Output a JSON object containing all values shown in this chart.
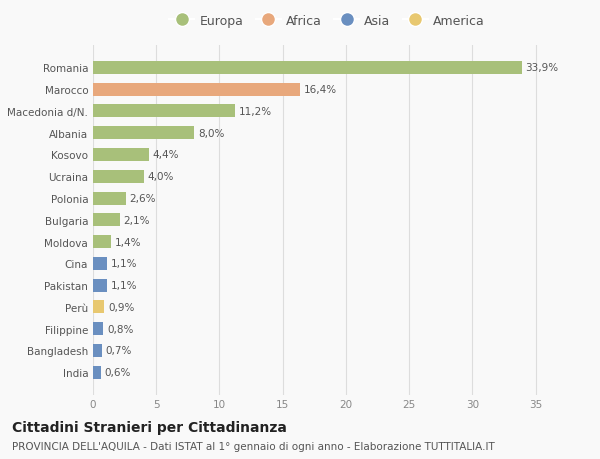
{
  "categories": [
    "Romania",
    "Marocco",
    "Macedonia d/N.",
    "Albania",
    "Kosovo",
    "Ucraina",
    "Polonia",
    "Bulgaria",
    "Moldova",
    "Cina",
    "Pakistan",
    "Perù",
    "Filippine",
    "Bangladesh",
    "India"
  ],
  "values": [
    33.9,
    16.4,
    11.2,
    8.0,
    4.4,
    4.0,
    2.6,
    2.1,
    1.4,
    1.1,
    1.1,
    0.9,
    0.8,
    0.7,
    0.6
  ],
  "labels": [
    "33,9%",
    "16,4%",
    "11,2%",
    "8,0%",
    "4,4%",
    "4,0%",
    "2,6%",
    "2,1%",
    "1,4%",
    "1,1%",
    "1,1%",
    "0,9%",
    "0,8%",
    "0,7%",
    "0,6%"
  ],
  "colors": [
    "#a8c07a",
    "#e8a87c",
    "#a8c07a",
    "#a8c07a",
    "#a8c07a",
    "#a8c07a",
    "#a8c07a",
    "#a8c07a",
    "#a8c07a",
    "#6a8fc0",
    "#6a8fc0",
    "#e8c870",
    "#6a8fc0",
    "#6a8fc0",
    "#6a8fc0"
  ],
  "legend_labels": [
    "Europa",
    "Africa",
    "Asia",
    "America"
  ],
  "legend_colors": [
    "#a8c07a",
    "#e8a87c",
    "#6a8fc0",
    "#e8c870"
  ],
  "xlim": [
    0,
    37
  ],
  "xticks": [
    0,
    5,
    10,
    15,
    20,
    25,
    30,
    35
  ],
  "title": "Cittadini Stranieri per Cittadinanza",
  "subtitle": "PROVINCIA DELL'AQUILA - Dati ISTAT al 1° gennaio di ogni anno - Elaborazione TUTTITALIA.IT",
  "bg_color": "#f9f9f9",
  "grid_color": "#dddddd",
  "bar_height": 0.6,
  "title_fontsize": 10,
  "subtitle_fontsize": 7.5,
  "tick_fontsize": 7.5,
  "legend_fontsize": 9,
  "annotation_fontsize": 7.5
}
